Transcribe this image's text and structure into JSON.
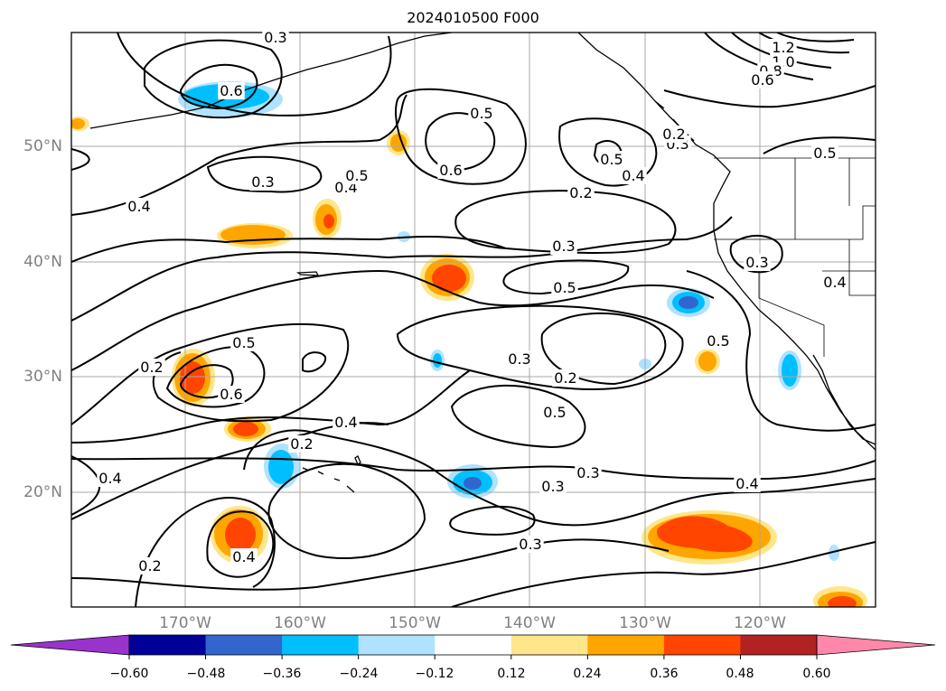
{
  "title": "2024010500 F000",
  "latitude_labels": [
    "50°N",
    "40°N",
    "30°N",
    "20°N"
  ],
  "longitude_labels": [
    "170°W",
    "160°W",
    "150°W",
    "140°W",
    "130°W",
    "120°W"
  ],
  "colorbar": {
    "ticks": [
      "−0.60",
      "−0.48",
      "−0.36",
      "−0.24",
      "−0.12",
      "0.12",
      "0.24",
      "0.36",
      "0.48",
      "0.60"
    ],
    "colors": [
      "#9933cc",
      "#000099",
      "#3366cc",
      "#00bfff",
      "#aee2ff",
      "#ffffff",
      "#ffe68a",
      "#ffa500",
      "#ff4500",
      "#b22222",
      "#ff88aa"
    ]
  },
  "contour_labels": [
    "1.2",
    "1.0",
    "0.8",
    "0.6",
    "0.6",
    "0.5",
    "0.6",
    "0.5",
    "0.4",
    "0.3",
    "0.3",
    "0.4",
    "0.2",
    "0.4",
    "0.3",
    "0.5",
    "0.3",
    "0.3",
    "0.4",
    "0.2",
    "0.5",
    "0.6",
    "0.5",
    "0.3",
    "0.2",
    "0.5",
    "0.4",
    "0.2",
    "0.3",
    "0.4",
    "0.4",
    "0.3",
    "0.2",
    "0.4",
    "0.2",
    "0.5",
    "0.3",
    "0.5"
  ]
}
